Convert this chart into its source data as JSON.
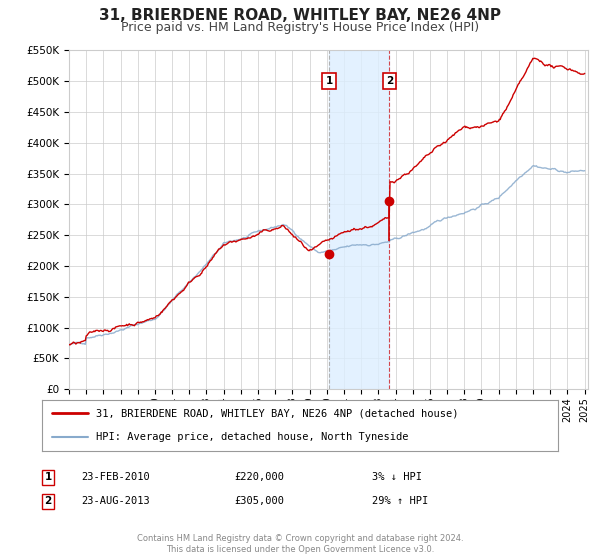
{
  "title": "31, BRIERDENE ROAD, WHITLEY BAY, NE26 4NP",
  "subtitle": "Price paid vs. HM Land Registry's House Price Index (HPI)",
  "ylim": [
    0,
    550000
  ],
  "xlim_start": 1995.0,
  "xlim_end": 2025.2,
  "yticks": [
    0,
    50000,
    100000,
    150000,
    200000,
    250000,
    300000,
    350000,
    400000,
    450000,
    500000,
    550000
  ],
  "ytick_labels": [
    "£0",
    "£50K",
    "£100K",
    "£150K",
    "£200K",
    "£250K",
    "£300K",
    "£350K",
    "£400K",
    "£450K",
    "£500K",
    "£550K"
  ],
  "xticks": [
    1995,
    1996,
    1997,
    1998,
    1999,
    2000,
    2001,
    2002,
    2003,
    2004,
    2005,
    2006,
    2007,
    2008,
    2009,
    2010,
    2011,
    2012,
    2013,
    2014,
    2015,
    2016,
    2017,
    2018,
    2019,
    2020,
    2021,
    2022,
    2023,
    2024,
    2025
  ],
  "transaction1_x": 2010.13,
  "transaction1_y": 220000,
  "transaction2_x": 2013.64,
  "transaction2_y": 305000,
  "shade_x1": 2010.13,
  "shade_x2": 2013.64,
  "vline1_x": 2010.13,
  "vline2_x": 2013.64,
  "label1_text": "1",
  "label2_text": "2",
  "property_line_color": "#cc0000",
  "hpi_line_color": "#88aacc",
  "property_line_label": "31, BRIERDENE ROAD, WHITLEY BAY, NE26 4NP (detached house)",
  "hpi_line_label": "HPI: Average price, detached house, North Tyneside",
  "legend_entry1_date": "23-FEB-2010",
  "legend_entry1_price": "£220,000",
  "legend_entry1_hpi": "3% ↓ HPI",
  "legend_entry2_date": "23-AUG-2013",
  "legend_entry2_price": "£305,000",
  "legend_entry2_hpi": "29% ↑ HPI",
  "footnote_line1": "Contains HM Land Registry data © Crown copyright and database right 2024.",
  "footnote_line2": "This data is licensed under the Open Government Licence v3.0.",
  "grid_color": "#cccccc",
  "bg_color": "#ffffff",
  "shade_color": "#ddeeff",
  "title_fontsize": 11,
  "subtitle_fontsize": 9
}
